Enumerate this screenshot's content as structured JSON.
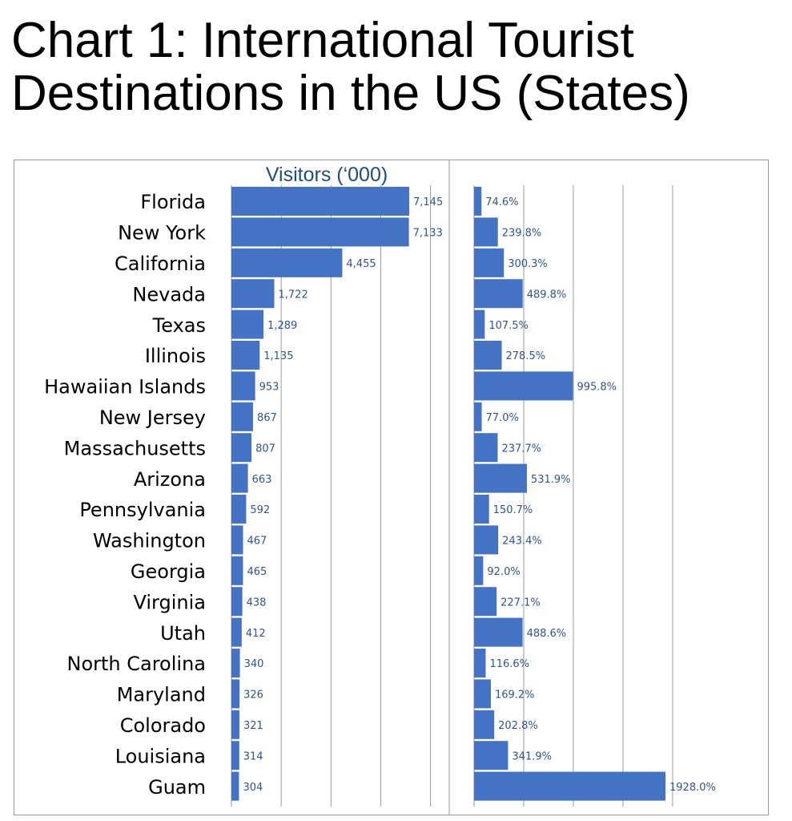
{
  "title": "Chart 1: International Tourist Destinations in the US (States)",
  "chart_data": [
    {
      "type": "bar",
      "orientation": "horizontal",
      "title": "Visitors (‘000)",
      "categories": [
        "Florida",
        "New York",
        "California",
        "Nevada",
        "Texas",
        "Illinois",
        "Hawaiian Islands",
        "New Jersey",
        "Massachusetts",
        "Arizona",
        "Pennsylvania",
        "Washington",
        "Georgia",
        "Virginia",
        "Utah",
        "North Carolina",
        "Maryland",
        "Colorado",
        "Louisiana",
        "Guam"
      ],
      "values": [
        7145,
        7133,
        4455,
        1722,
        1289,
        1135,
        953,
        867,
        807,
        663,
        592,
        467,
        465,
        438,
        412,
        340,
        326,
        321,
        314,
        304
      ],
      "value_labels": [
        "7,145",
        "7,133",
        "4,455",
        "1,722",
        "1,289",
        "1,135",
        "953",
        "867",
        "807",
        "663",
        "592",
        "467",
        "465",
        "438",
        "412",
        "340",
        "326",
        "321",
        "314",
        "304"
      ],
      "xlim": [
        0,
        8000
      ],
      "grid": true,
      "color": "#4472c4"
    },
    {
      "type": "bar",
      "orientation": "horizontal",
      "categories": [
        "Florida",
        "New York",
        "California",
        "Nevada",
        "Texas",
        "Illinois",
        "Hawaiian Islands",
        "New Jersey",
        "Massachusetts",
        "Arizona",
        "Pennsylvania",
        "Washington",
        "Georgia",
        "Virginia",
        "Utah",
        "North Carolina",
        "Maryland",
        "Colorado",
        "Louisiana",
        "Guam"
      ],
      "values": [
        74.6,
        239.8,
        300.3,
        489.8,
        107.5,
        278.5,
        995.8,
        77.0,
        237.7,
        531.9,
        150.7,
        243.4,
        92.0,
        227.1,
        488.6,
        116.6,
        169.2,
        202.8,
        341.9,
        1928.0
      ],
      "value_labels": [
        "74.6%",
        "239.8%",
        "300.3%",
        "489.8%",
        "107.5%",
        "278.5%",
        "995.8%",
        "77.0%",
        "237.7%",
        "531.9%",
        "150.7%",
        "243.4%",
        "92.0%",
        "227.1%",
        "488.6%",
        "116.6%",
        "169.2%",
        "202.8%",
        "341.9%",
        "1928.0%"
      ],
      "xlim": [
        0,
        2000
      ],
      "grid": true,
      "color": "#4472c4"
    }
  ]
}
